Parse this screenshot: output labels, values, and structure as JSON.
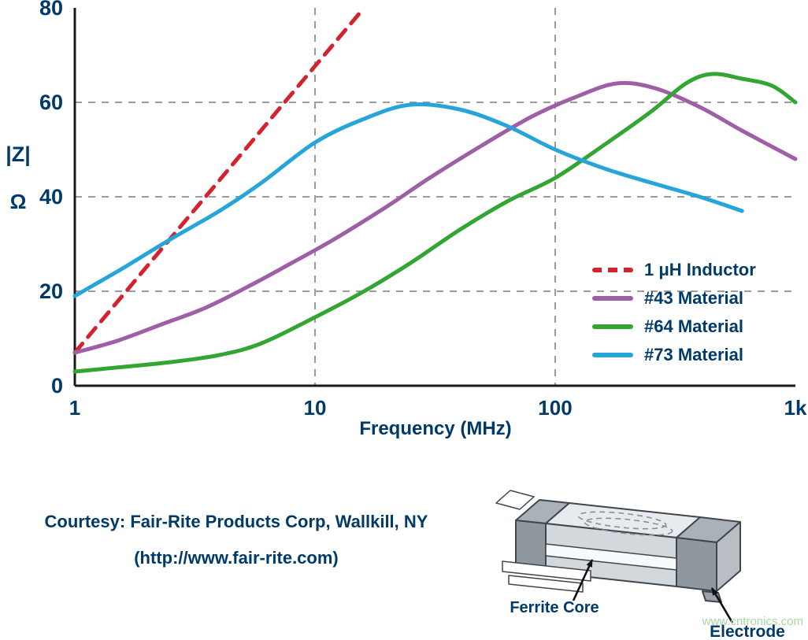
{
  "colors": {
    "text_navy": "#003a69",
    "axis": "#1a1a1a",
    "grid": "#8f8f8f",
    "watermark": "#a7d7a3"
  },
  "chart_data": {
    "type": "line",
    "x_scale": "log",
    "title": "",
    "xlabel": "Frequency (MHz)",
    "ylabel_top": "|Z|",
    "ylabel_bottom": "Ω",
    "xlim": [
      1,
      1000
    ],
    "ylim": [
      0,
      80
    ],
    "grid_x": [
      10,
      100
    ],
    "grid_y": [
      20,
      40,
      60
    ],
    "legend_position": "inside-right",
    "x_ticks": [
      {
        "value": 1,
        "label": "1"
      },
      {
        "value": 10,
        "label": "10"
      },
      {
        "value": 100,
        "label": "100"
      },
      {
        "value": 1000,
        "label": "1k"
      }
    ],
    "y_ticks": [
      {
        "value": 0,
        "label": "0"
      },
      {
        "value": 20,
        "label": "20"
      },
      {
        "value": 40,
        "label": "40"
      },
      {
        "value": 60,
        "label": "60"
      },
      {
        "value": 80,
        "label": "80"
      }
    ],
    "series": [
      {
        "id": "inductor",
        "name": "1 μH Inductor",
        "color": "#d2232e",
        "dash": true,
        "points": [
          [
            1,
            7
          ],
          [
            2,
            25.3
          ],
          [
            4,
            43.5
          ],
          [
            8,
            61.8
          ],
          [
            16,
            80
          ]
        ]
      },
      {
        "id": "43-material",
        "name": "#43 Material",
        "color": "#9e5fa7",
        "dash": false,
        "points": [
          [
            1,
            7
          ],
          [
            1.5,
            9.5
          ],
          [
            2.3,
            13
          ],
          [
            3.5,
            16.5
          ],
          [
            5.5,
            21.5
          ],
          [
            8,
            26
          ],
          [
            12,
            31
          ],
          [
            20,
            38
          ],
          [
            30,
            44
          ],
          [
            50,
            51
          ],
          [
            80,
            57
          ],
          [
            120,
            61
          ],
          [
            180,
            64
          ],
          [
            260,
            63
          ],
          [
            400,
            59
          ],
          [
            600,
            54
          ],
          [
            1000,
            48
          ]
        ]
      },
      {
        "id": "64-material",
        "name": "#64 Material",
        "color": "#33a532",
        "dash": false,
        "points": [
          [
            1,
            3
          ],
          [
            1.6,
            4
          ],
          [
            2.5,
            5
          ],
          [
            4,
            6.5
          ],
          [
            6,
            9
          ],
          [
            10,
            14.5
          ],
          [
            16,
            20
          ],
          [
            25,
            26
          ],
          [
            40,
            33
          ],
          [
            63,
            39
          ],
          [
            100,
            44
          ],
          [
            160,
            51
          ],
          [
            250,
            58
          ],
          [
            350,
            64
          ],
          [
            450,
            66
          ],
          [
            600,
            65
          ],
          [
            800,
            63.5
          ],
          [
            1000,
            60
          ]
        ]
      },
      {
        "id": "73-material",
        "name": "#73 Material",
        "color": "#27a5d9",
        "dash": false,
        "points": [
          [
            1,
            19
          ],
          [
            1.6,
            25
          ],
          [
            2.5,
            31
          ],
          [
            4,
            37
          ],
          [
            6,
            43
          ],
          [
            10,
            51.5
          ],
          [
            16,
            56.5
          ],
          [
            25,
            59.5
          ],
          [
            40,
            58.5
          ],
          [
            63,
            55
          ],
          [
            100,
            50
          ],
          [
            160,
            46
          ],
          [
            250,
            43
          ],
          [
            400,
            40
          ],
          [
            600,
            37
          ]
        ]
      }
    ]
  },
  "footer": {
    "courtesy_line1": "Courtesy: Fair-Rite Products Corp, Wallkill, NY",
    "courtesy_line2": "(http://www.fair-rite.com)"
  },
  "illustration": {
    "ferrite_core_label": "Ferrite Core",
    "electrode_label": "Electrode",
    "watermark": "www.cntronics.com"
  }
}
